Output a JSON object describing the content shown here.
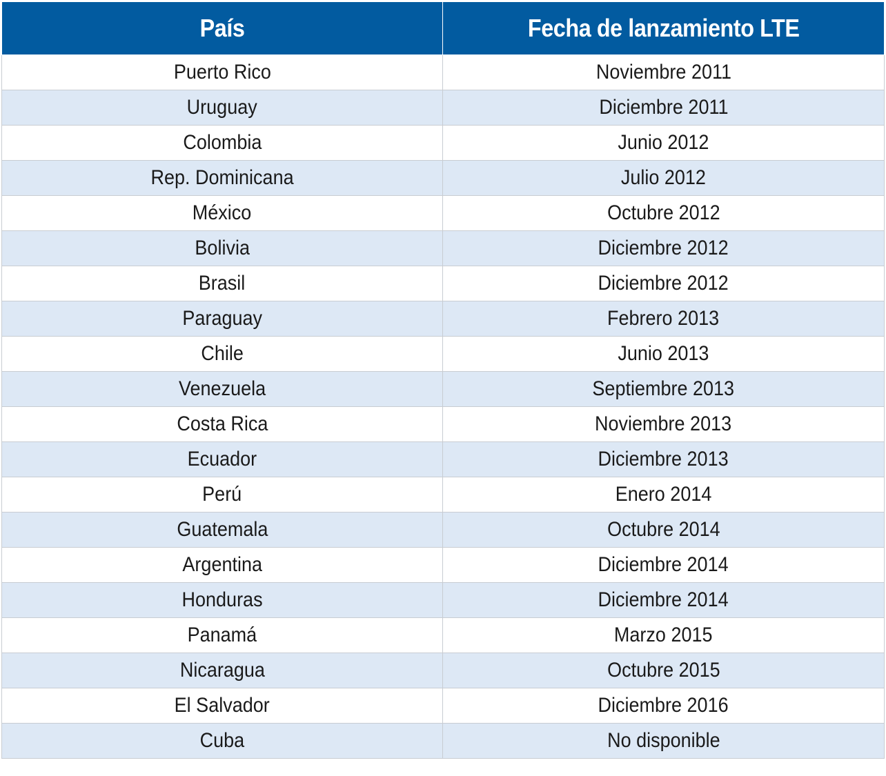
{
  "table": {
    "headers": [
      "País",
      "Fecha de lanzamiento LTE"
    ],
    "rows": [
      [
        "Puerto Rico",
        "Noviembre 2011"
      ],
      [
        "Uruguay",
        "Diciembre 2011"
      ],
      [
        "Colombia",
        "Junio 2012"
      ],
      [
        "Rep. Dominicana",
        "Julio 2012"
      ],
      [
        "México",
        "Octubre 2012"
      ],
      [
        "Bolivia",
        "Diciembre 2012"
      ],
      [
        "Brasil",
        "Diciembre 2012"
      ],
      [
        "Paraguay",
        "Febrero 2013"
      ],
      [
        "Chile",
        "Junio 2013"
      ],
      [
        "Venezuela",
        "Septiembre 2013"
      ],
      [
        "Costa Rica",
        "Noviembre 2013"
      ],
      [
        "Ecuador",
        "Diciembre 2013"
      ],
      [
        "Perú",
        "Enero 2014"
      ],
      [
        "Guatemala",
        "Octubre 2014"
      ],
      [
        "Argentina",
        "Diciembre 2014"
      ],
      [
        "Honduras",
        "Diciembre 2014"
      ],
      [
        "Panamá",
        "Marzo 2015"
      ],
      [
        "Nicaragua",
        "Octubre 2015"
      ],
      [
        "El Salvador",
        "Diciembre 2016"
      ],
      [
        "Cuba",
        "No disponible"
      ]
    ]
  },
  "colors": {
    "header_background": "#025ba0",
    "header_text": "#ffffff",
    "row_alt_background": "#dde8f5",
    "row_background": "#ffffff"
  }
}
